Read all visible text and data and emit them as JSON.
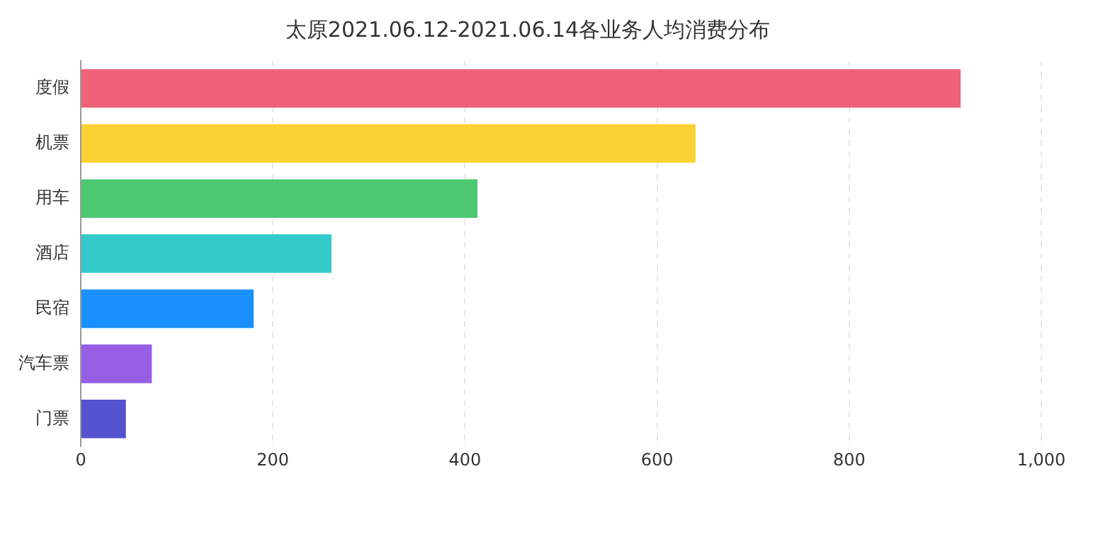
{
  "chart_data": {
    "type": "bar",
    "orientation": "horizontal",
    "title": "太原2021.06.12-2021.06.14各业务人均消费分布",
    "categories": [
      "度假",
      "机票",
      "用车",
      "酒店",
      "民宿",
      "汽车票",
      "门票"
    ],
    "values": [
      916,
      640,
      413,
      261,
      180,
      74,
      47
    ],
    "colors": [
      "#f06377",
      "#fbd334",
      "#4dc870",
      "#33c9ca",
      "#1a90ff",
      "#965fe3",
      "#5452cd"
    ],
    "xlim": [
      0,
      1000
    ],
    "xticks": [
      0,
      200,
      400,
      600,
      800,
      {
        "value": 1000,
        "label": "1,000"
      }
    ],
    "grid": "x",
    "legend": false
  }
}
